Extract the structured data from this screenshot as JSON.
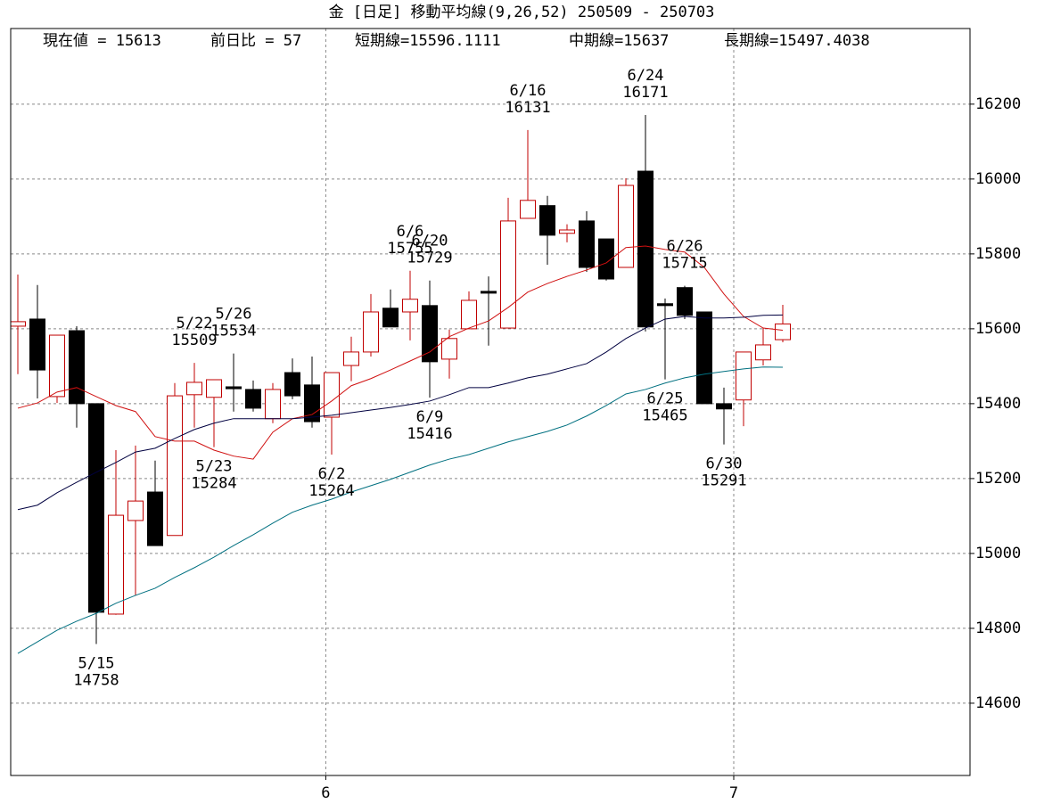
{
  "chart_data": {
    "type": "candlestick",
    "title": "金 [日足] 移動平均線(9,26,52) 250509 - 250703",
    "info": [
      "現在値 = 15613",
      "前日比 = 57",
      "短期線=15596.1111",
      "中期線=15637",
      "長期線=15497.4038"
    ],
    "categories": [
      null,
      null,
      null,
      null,
      null,
      null,
      null,
      null,
      null,
      null,
      null,
      null,
      null,
      null,
      null,
      null,
      null,
      null,
      null,
      null,
      null,
      null,
      null,
      null,
      null,
      null,
      null,
      null,
      null,
      null,
      null,
      null,
      null,
      null,
      null,
      null,
      null,
      null,
      null,
      null
    ],
    "open": [
      15607,
      15626,
      15419,
      15595,
      15400,
      14838,
      15088,
      15164,
      15048,
      15424,
      15417,
      15445,
      15438,
      15360,
      15483,
      15450,
      15364,
      15502,
      15538,
      15655,
      15645,
      15662,
      15519,
      15600,
      15700,
      15602,
      15895,
      15929,
      15855,
      15888,
      15840,
      15764,
      16021,
      15667,
      15710,
      15645,
      15400,
      15410,
      15517,
      15571
    ],
    "high": [
      15745,
      15717,
      15583,
      15607,
      15400,
      15276,
      15288,
      15248,
      15455,
      15509,
      15464,
      15534,
      15462,
      15455,
      15521,
      15526,
      15483,
      15579,
      15693,
      15705,
      15755,
      15729,
      15598,
      15700,
      15740,
      15950,
      16131,
      15955,
      15879,
      15914,
      15840,
      16002,
      16171,
      15681,
      15715,
      15645,
      15443,
      15538,
      15602,
      15664
    ],
    "low": [
      15479,
      15414,
      15402,
      15336,
      14758,
      14836,
      14888,
      15021,
      15048,
      15336,
      15284,
      15379,
      15379,
      15348,
      15412,
      15336,
      15264,
      15460,
      15526,
      15605,
      15569,
      15416,
      15467,
      15600,
      15555,
      15602,
      15895,
      15771,
      15831,
      15752,
      15729,
      15764,
      15593,
      15465,
      15626,
      15400,
      15291,
      15340,
      15502,
      15564
    ],
    "close": [
      15619,
      15490,
      15583,
      15400,
      14843,
      15102,
      15140,
      15021,
      15421,
      15457,
      15464,
      15440,
      15388,
      15438,
      15421,
      15352,
      15483,
      15538,
      15645,
      15605,
      15679,
      15512,
      15574,
      15676,
      15698,
      15888,
      15943,
      15850,
      15864,
      15764,
      15733,
      15983,
      15605,
      15662,
      15636,
      15400,
      15386,
      15538,
      15557,
      15613
    ],
    "up_color": "#c00000",
    "down_color": "#000000",
    "series": [
      {
        "color": "#d01010",
        "values": [
          15388,
          15402,
          15431,
          15443,
          15419,
          15395,
          15379,
          15312,
          15300,
          15300,
          15276,
          15260,
          15252,
          15324,
          15360,
          15371,
          15407,
          15448,
          15467,
          15490,
          15514,
          15538,
          15579,
          15602,
          15621,
          15657,
          15698,
          15721,
          15740,
          15757,
          15776,
          15817,
          15821,
          15812,
          15805,
          15764,
          15693,
          15633,
          15602,
          15596.1111
        ]
      },
      {
        "color": "#000040",
        "values": [
          15117,
          15129,
          15162,
          15190,
          15217,
          15243,
          15271,
          15281,
          15307,
          15331,
          15348,
          15360,
          15360,
          15360,
          15360,
          15364,
          15369,
          15376,
          15383,
          15390,
          15398,
          15407,
          15424,
          15443,
          15443,
          15455,
          15469,
          15479,
          15493,
          15507,
          15538,
          15574,
          15602,
          15626,
          15633,
          15629,
          15629,
          15631,
          15636,
          15637
        ]
      },
      {
        "color": "#007080",
        "values": [
          14733,
          14764,
          14795,
          14819,
          14840,
          14867,
          14888,
          14907,
          14936,
          14962,
          14990,
          15021,
          15050,
          15081,
          15110,
          15129,
          15145,
          15164,
          15181,
          15198,
          15217,
          15236,
          15252,
          15264,
          15281,
          15298,
          15312,
          15326,
          15343,
          15367,
          15395,
          15426,
          15438,
          15455,
          15469,
          15479,
          15486,
          15493,
          15498,
          15497.4038
        ]
      }
    ],
    "annotations": [
      {
        "label": "5/15",
        "value": 14758
      },
      {
        "label": "5/22",
        "value": 15509
      },
      {
        "label": "5/26",
        "value": 15534
      },
      {
        "label": "5/23",
        "value": 15284
      },
      {
        "label": "6/2",
        "value": 15264
      },
      {
        "label": "6/6",
        "value": 15755
      },
      {
        "label": "6/9",
        "value": 15416
      },
      {
        "label": "6/16",
        "value": 16131
      },
      {
        "label": "6/20",
        "value": 15729
      },
      {
        "label": "6/24",
        "value": 16171
      },
      {
        "label": "6/25",
        "value": 15465
      },
      {
        "label": "6/26",
        "value": 15715
      },
      {
        "label": "6/30",
        "value": 15291
      }
    ],
    "ylim": [
      14407,
      16402
    ],
    "yticks": [
      14600,
      14800,
      15000,
      15200,
      15400,
      15600,
      15800,
      16000,
      16200
    ],
    "xticks": [
      {
        "value": 15.7,
        "label": "6"
      },
      {
        "value": 36.5,
        "label": "7"
      }
    ],
    "grid": true
  }
}
